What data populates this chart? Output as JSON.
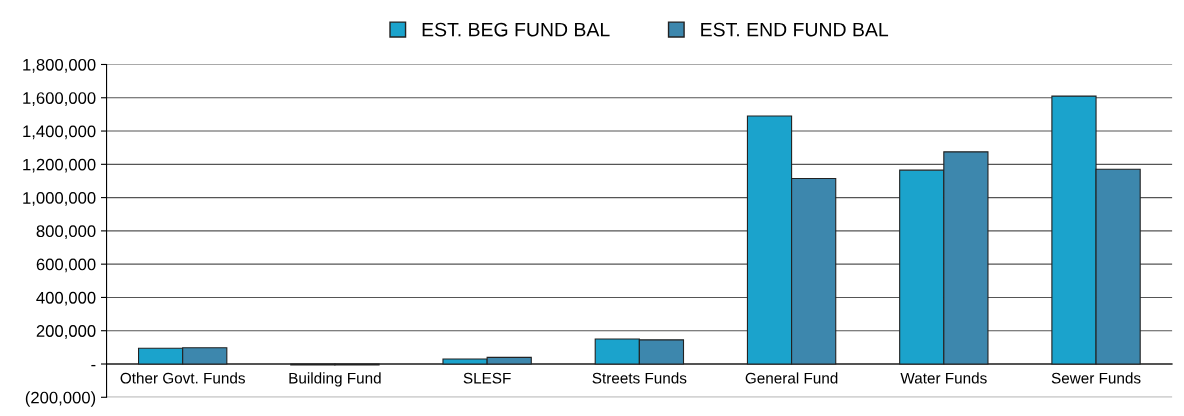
{
  "chart_data": {
    "type": "bar",
    "categories": [
      "Other Govt. Funds",
      "Building Fund",
      "SLESF",
      "Streets Funds",
      "General Fund",
      "Water Funds",
      "Sewer Funds"
    ],
    "series": [
      {
        "name": "EST. BEG FUND BAL",
        "color": "#1ba3cc",
        "values": [
          95000,
          -5000,
          30000,
          150000,
          1490000,
          1165000,
          1610000
        ]
      },
      {
        "name": "EST. END FUND BAL",
        "color": "#3d87ad",
        "values": [
          98000,
          -5000,
          40000,
          145000,
          1115000,
          1275000,
          1170000
        ]
      }
    ],
    "ylim": [
      -200000,
      1800000
    ],
    "yticks": [
      {
        "value": -200000,
        "label": "(200,000)"
      },
      {
        "value": 0,
        "label": "-"
      },
      {
        "value": 200000,
        "label": "200,000"
      },
      {
        "value": 400000,
        "label": "400,000"
      },
      {
        "value": 600000,
        "label": "600,000"
      },
      {
        "value": 800000,
        "label": "800,000"
      },
      {
        "value": 1000000,
        "label": "1,000,000"
      },
      {
        "value": 1200000,
        "label": "1,200,000"
      },
      {
        "value": 1400000,
        "label": "1,400,000"
      },
      {
        "value": 1600000,
        "label": "1,600,000"
      },
      {
        "value": 1800000,
        "label": "1,800,000"
      }
    ],
    "grid": "y",
    "legend": "top"
  }
}
